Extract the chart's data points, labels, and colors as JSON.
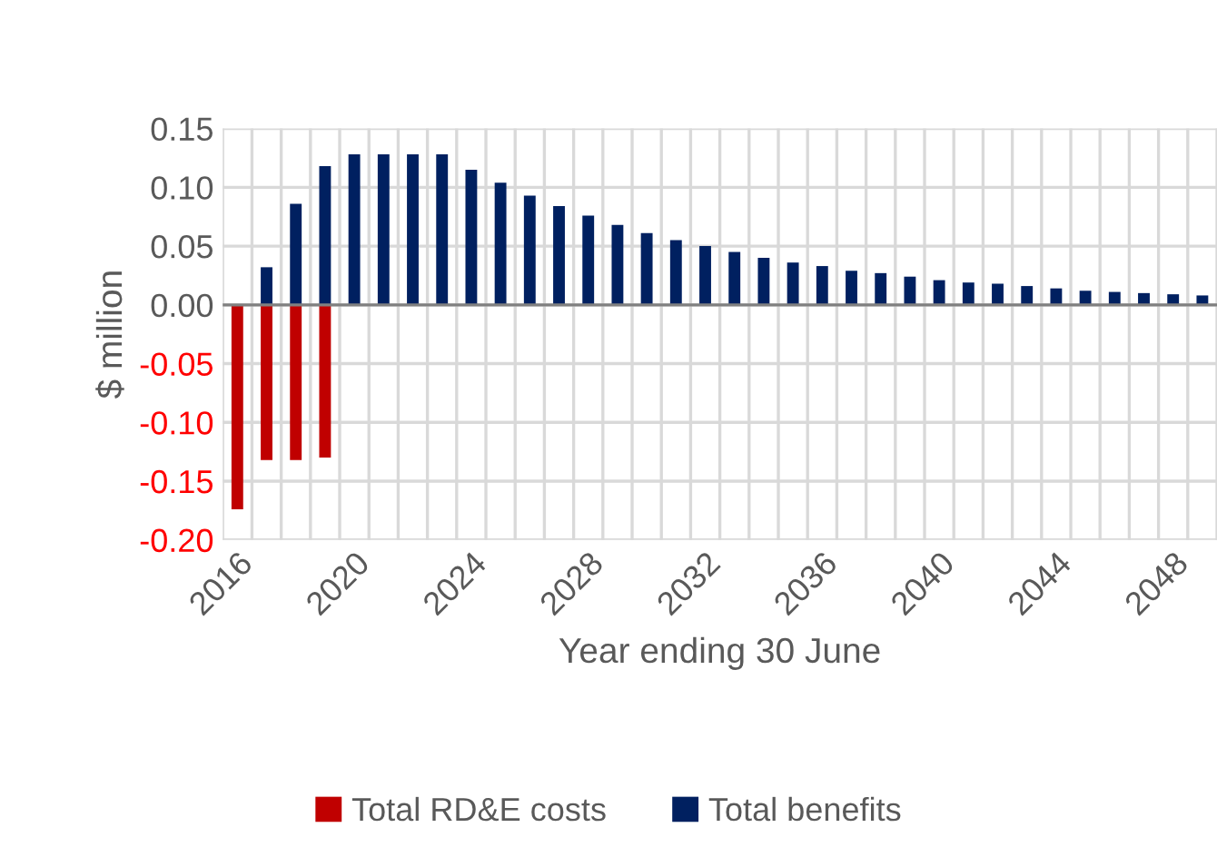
{
  "chart_data": {
    "type": "bar",
    "ylabel": "$ million",
    "xlabel": "Year ending 30 June",
    "categories": [
      "2016",
      null,
      null,
      null,
      "2020",
      null,
      null,
      null,
      "2024",
      null,
      null,
      null,
      "2028",
      null,
      null,
      null,
      "2032",
      null,
      null,
      null,
      "2036",
      null,
      null,
      null,
      "2040",
      null,
      null,
      null,
      "2044",
      null,
      null,
      null,
      "2048",
      null
    ],
    "series": [
      {
        "name": "Total RD&E costs",
        "color": "#c00000",
        "values": [
          -0.174,
          -0.132,
          -0.132,
          -0.13,
          null,
          null,
          null,
          null,
          null,
          null,
          null,
          null,
          null,
          null,
          null,
          null,
          null,
          null,
          null,
          null,
          null,
          null,
          null,
          null,
          null,
          null,
          null,
          null,
          null,
          null,
          null,
          null,
          null,
          null
        ]
      },
      {
        "name": "Total benefits",
        "color": "#002060",
        "values": [
          null,
          0.032,
          0.086,
          0.118,
          0.128,
          0.128,
          0.128,
          0.128,
          0.115,
          0.104,
          0.093,
          0.084,
          0.076,
          0.068,
          0.061,
          0.055,
          0.05,
          0.045,
          0.04,
          0.036,
          0.033,
          0.029,
          0.027,
          0.024,
          0.021,
          0.019,
          0.018,
          0.016,
          0.014,
          0.012,
          0.011,
          0.01,
          0.009,
          0.008
        ]
      }
    ],
    "ylim": [
      -0.2,
      0.15
    ],
    "yticks": [
      {
        "value": 0.15,
        "label": "0.15"
      },
      {
        "value": 0.1,
        "label": "0.10"
      },
      {
        "value": 0.05,
        "label": "0.05"
      },
      {
        "value": 0,
        "label": "0.00"
      },
      {
        "value": -0.05,
        "label": "-0.05"
      },
      {
        "value": -0.1,
        "label": "-0.10"
      },
      {
        "value": -0.15,
        "label": "-0.15"
      },
      {
        "value": -0.2,
        "label": "-0.20"
      }
    ],
    "grid": true,
    "legend": "bottom"
  }
}
